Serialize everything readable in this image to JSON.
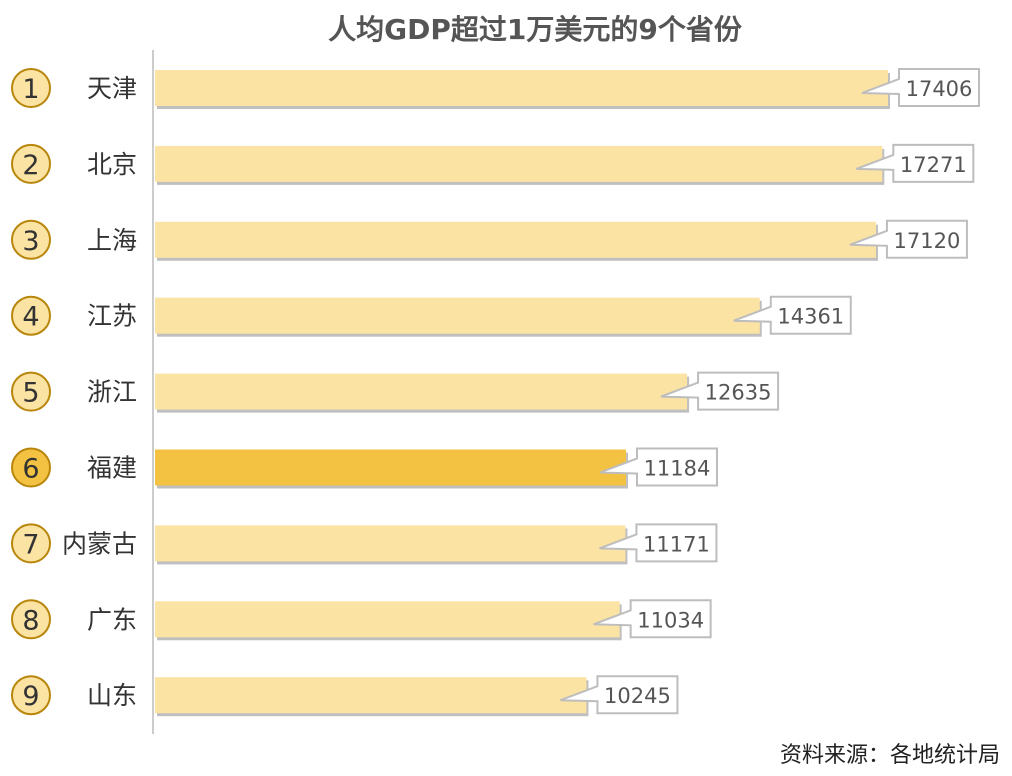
{
  "chart_data": {
    "type": "bar",
    "orientation": "horizontal",
    "title": "人均GDP超过1万美元的9个省份",
    "ranks": [
      "1",
      "2",
      "3",
      "4",
      "5",
      "6",
      "7",
      "8",
      "9"
    ],
    "categories": [
      "天津",
      "北京",
      "上海",
      "江苏",
      "浙江",
      "福建",
      "内蒙古",
      "广东",
      "山东"
    ],
    "values": [
      17406,
      17271,
      17120,
      14361,
      12635,
      11184,
      11171,
      11034,
      10245
    ],
    "highlight_index": 5,
    "xlim": [
      0,
      18000
    ],
    "grid": false,
    "source": "资料来源：各地统计局"
  },
  "colors": {
    "bar": "#FBE3A4",
    "bar_highlight": "#F4C242",
    "bar_shadow": "#8a8a8a",
    "rank_circle": "#FBE3A4",
    "rank_circle_highlight": "#F4C242",
    "rank_circle_stroke": "#B8860B",
    "axis": "#cccccc",
    "callout_stroke": "#bdbdbd"
  }
}
